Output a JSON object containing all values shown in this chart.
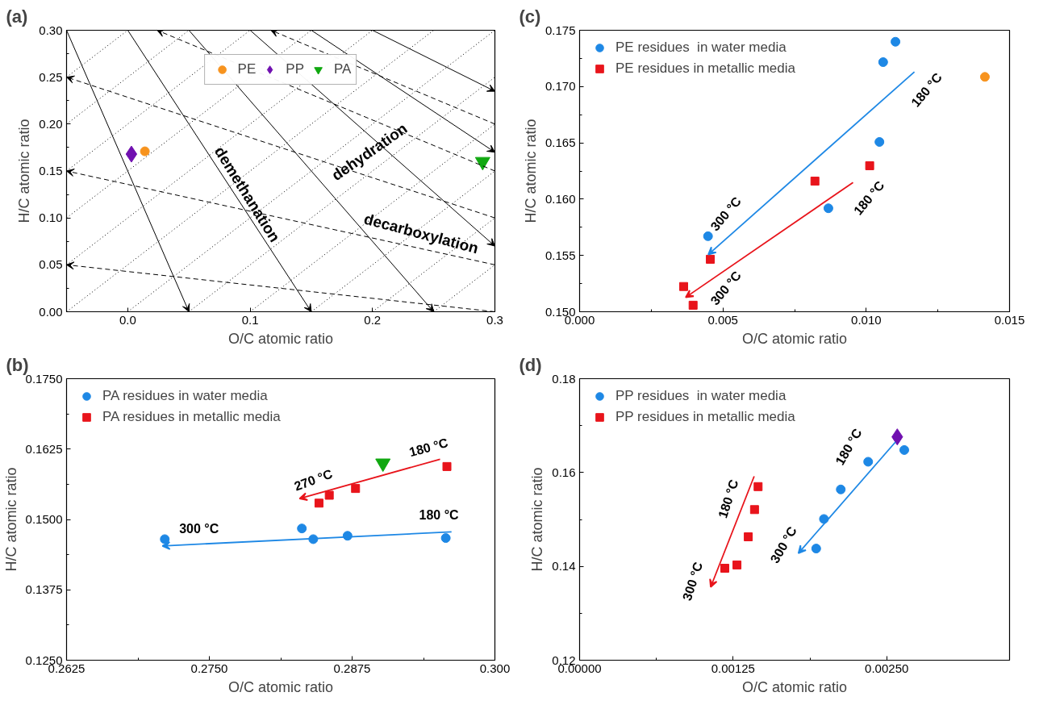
{
  "chart_data": [
    {
      "type": "scatter",
      "title": "(a)",
      "xlabel": "O/C atomic ratio",
      "ylabel": "H/C atomic ratio",
      "xlim": [
        -0.05,
        0.3
      ],
      "ylim": [
        0,
        0.3
      ],
      "xticks": [
        {
          "value": 0,
          "label": "0.0"
        },
        0.1,
        0.2,
        0.3
      ],
      "yticks": [
        {
          "value": 0,
          "label": "0.00"
        },
        0.05,
        {
          "value": 0.1,
          "label": "0.10"
        },
        0.15,
        {
          "value": 0.2,
          "label": "0.20"
        },
        0.25,
        {
          "value": 0.3,
          "label": "0.30"
        }
      ],
      "grid": false,
      "legend": "top",
      "series": [
        {
          "name": "PE",
          "color": "#f7931e",
          "marker": "circle",
          "x": [
            0.014
          ],
          "values": [
            0.171
          ]
        },
        {
          "name": "PP",
          "color": "#7010b0",
          "marker": "diamond",
          "x": [
            0.003
          ],
          "values": [
            0.168
          ]
        },
        {
          "name": "PA",
          "color": "#10a810",
          "marker": "triangle",
          "x": [
            0.29
          ],
          "values": [
            0.16
          ]
        },
        {
          "type": "line",
          "color": "#000000",
          "line_style": "dotted",
          "x": [
            -0.05,
            0.0
          ],
          "values": [
            0.25,
            0.3
          ]
        },
        {
          "type": "line",
          "color": "#000000",
          "line_style": "dotted",
          "x": [
            -0.05,
            0.05
          ],
          "values": [
            0.2,
            0.3
          ]
        },
        {
          "type": "line",
          "color": "#000000",
          "line_style": "dotted",
          "x": [
            -0.05,
            0.1
          ],
          "values": [
            0.15,
            0.3
          ]
        },
        {
          "type": "line",
          "color": "#000000",
          "line_style": "dotted",
          "x": [
            -0.05,
            0.15
          ],
          "values": [
            0.1,
            0.3
          ]
        },
        {
          "type": "line",
          "color": "#000000",
          "line_style": "dotted",
          "x": [
            -0.05,
            0.2
          ],
          "values": [
            0.05,
            0.3
          ]
        },
        {
          "type": "line",
          "color": "#000000",
          "line_style": "dotted",
          "x": [
            -0.05,
            0.25
          ],
          "values": [
            0,
            0.3
          ]
        },
        {
          "type": "line",
          "color": "#000000",
          "line_style": "dotted",
          "x": [
            0,
            0.3
          ],
          "values": [
            0,
            0.3
          ]
        },
        {
          "type": "line",
          "color": "#000000",
          "line_style": "dotted",
          "x": [
            0.05,
            0.3
          ],
          "values": [
            0,
            0.25
          ]
        },
        {
          "type": "line",
          "color": "#000000",
          "line_style": "dotted",
          "x": [
            0.1,
            0.3
          ],
          "values": [
            0,
            0.2
          ]
        },
        {
          "type": "line",
          "color": "#000000",
          "line_style": "dotted",
          "x": [
            0.15,
            0.3
          ],
          "values": [
            0,
            0.15
          ]
        },
        {
          "type": "line",
          "color": "#000000",
          "line_style": "dotted",
          "x": [
            0.2,
            0.3
          ],
          "values": [
            0,
            0.1
          ]
        },
        {
          "type": "line",
          "color": "#000000",
          "line_style": "dotted",
          "x": [
            0.25,
            0.3
          ],
          "values": [
            0,
            0.05
          ]
        }
      ],
      "annotations": [
        "demethanation",
        "dehydration",
        "decarboxylation"
      ]
    },
    {
      "type": "scatter",
      "title": "(c)",
      "xlabel": "O/C atomic ratio",
      "ylabel": "H/C atomic ratio",
      "xlim": [
        0,
        0.015
      ],
      "ylim": [
        0.15,
        0.175
      ],
      "xticks": [
        {
          "value": 0,
          "label": "0.000"
        },
        {
          "value": 0.005,
          "label": "0.005"
        },
        {
          "value": 0.01,
          "label": "0.010"
        },
        {
          "value": 0.015,
          "label": "0.015"
        }
      ],
      "yticks": [
        {
          "value": 0.15,
          "label": "0.150"
        },
        0.155,
        {
          "value": 0.16,
          "label": "0.160"
        },
        0.165,
        {
          "value": 0.17,
          "label": "0.170"
        },
        0.175
      ],
      "grid": false,
      "legend": "top left",
      "series": [
        {
          "name": "PE residues  in water media",
          "color": "#1e88e5",
          "marker": "circle",
          "x": [
            0.01102,
            0.01059,
            0.01046,
            0.00868,
            0.00448
          ],
          "values": [
            0.17398,
            0.17217,
            0.16508,
            0.15919,
            0.15671
          ]
        },
        {
          "name": "PE residues in metallic media",
          "color": "#e8141b",
          "marker": "square",
          "x": [
            0.01012,
            0.00821,
            0.00456,
            0.00363,
            0.00396
          ],
          "values": [
            0.16297,
            0.1616,
            0.15466,
            0.15224,
            0.15058
          ]
        },
        {
          "color": "#f7931e",
          "marker": "circle",
          "x": [
            0.01414
          ],
          "values": [
            0.17086
          ]
        }
      ],
      "annotations": [
        "180 °C",
        "300 °C",
        "180 °C",
        "300 °C"
      ]
    },
    {
      "type": "scatter",
      "title": "(b)",
      "xlabel": "O/C atomic ratio",
      "ylabel": "H/C atomic ratio",
      "xlim": [
        0.2625,
        0.3
      ],
      "ylim": [
        0.125,
        0.175
      ],
      "xticks": [
        0.2625,
        {
          "value": 0.275,
          "label": "0.2750"
        },
        0.2875,
        {
          "value": 0.3,
          "label": "0.300"
        }
      ],
      "yticks": [
        {
          "value": 0.125,
          "label": "0.1250"
        },
        0.1375,
        {
          "value": 0.15,
          "label": "0.1500"
        },
        0.1625,
        {
          "value": 0.175,
          "label": "0.1750"
        }
      ],
      "grid": false,
      "legend": "top left",
      "series": [
        {
          "name": "PA residues in water media",
          "color": "#1e88e5",
          "marker": "circle",
          "x": [
            0.2711,
            0.2831,
            0.2841,
            0.2871,
            0.2957
          ],
          "values": [
            0.1465,
            0.1484,
            0.1465,
            0.1471,
            0.1467
          ]
        },
        {
          "name": "PA residues in metallic media",
          "color": "#e8141b",
          "marker": "square",
          "x": [
            0.2846,
            0.2855,
            0.2878,
            0.2958
          ],
          "values": [
            0.1529,
            0.1543,
            0.1555,
            0.1594
          ]
        },
        {
          "color": "#10a810",
          "marker": "triangle",
          "x": [
            0.2902
          ],
          "values": [
            0.16
          ]
        }
      ],
      "annotations": [
        "180 °C",
        "270 °C",
        "180 °C",
        "300 °C"
      ]
    },
    {
      "type": "scatter",
      "title": "(d)",
      "xlabel": "O/C atomic ratio",
      "ylabel": "H/C atomic ratio",
      "xlim": [
        0,
        0.0035
      ],
      "ylim": [
        0.12,
        0.18
      ],
      "xticks": [
        {
          "value": 0,
          "label": "0.00000"
        },
        0.00125,
        {
          "value": 0.0025,
          "label": "0.00250"
        }
      ],
      "yticks": [
        0.12,
        0.14,
        0.16,
        0.18
      ],
      "grid": false,
      "legend": "top left",
      "series": [
        {
          "name": "PP residues  in water media",
          "color": "#1e88e5",
          "marker": "circle",
          "x": [
            0.001926,
            0.001989,
            0.002126,
            0.002349,
            0.002643
          ],
          "values": [
            0.1438,
            0.1501,
            0.1564,
            0.1623,
            0.1648
          ]
        },
        {
          "name": "PP residues in metallic media",
          "color": "#e8141b",
          "marker": "square",
          "x": [
            0.001182,
            0.001281,
            0.001373,
            0.001424,
            0.001453
          ],
          "values": [
            0.1396,
            0.1403,
            0.1463,
            0.1521,
            0.157
          ]
        },
        {
          "color": "#7010b0",
          "marker": "diamond",
          "x": [
            0.002586
          ],
          "values": [
            0.1676
          ]
        }
      ],
      "annotations": [
        "180 °C",
        "300 °C",
        "180 °C",
        "300 °C"
      ]
    }
  ]
}
